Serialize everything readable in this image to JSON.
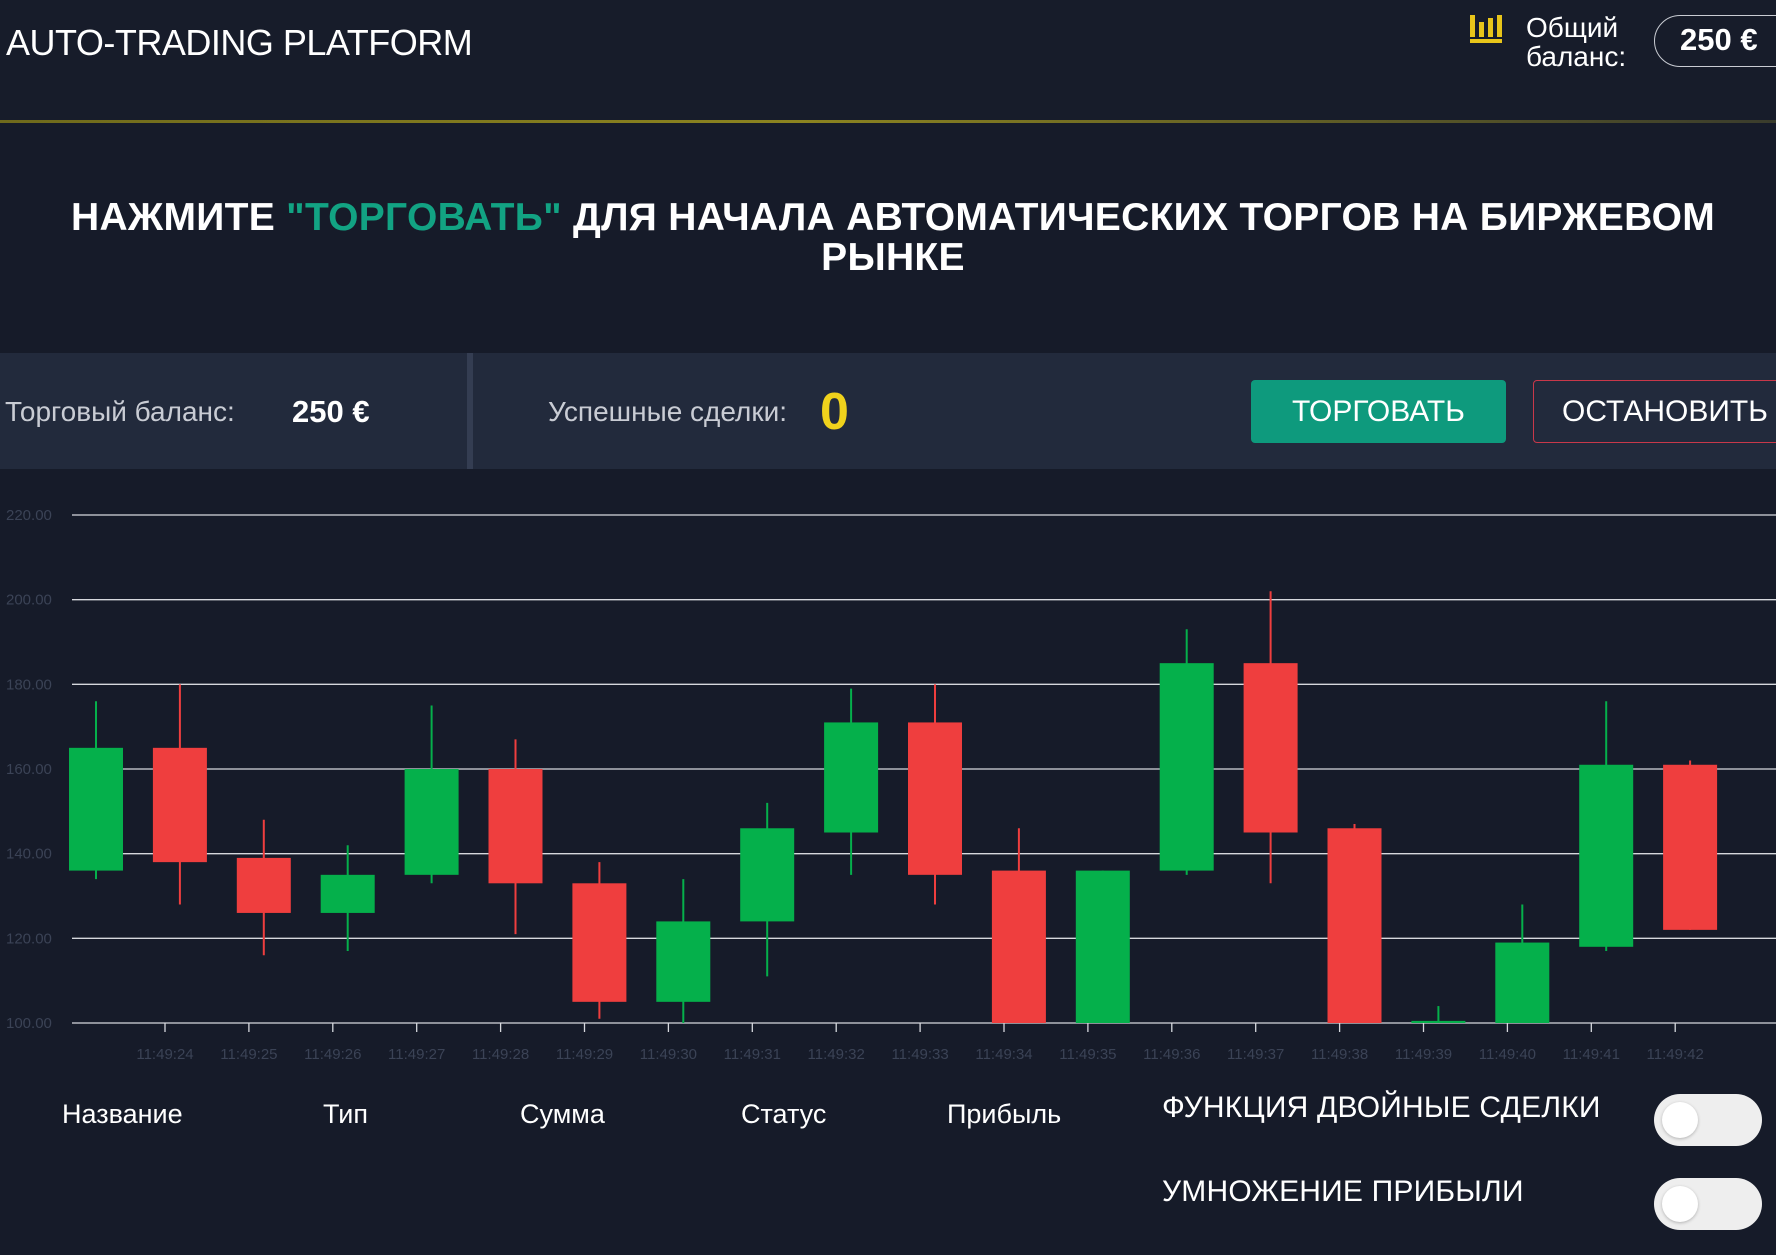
{
  "header": {
    "title": "AUTO-TRADING PLATFORM",
    "balance_label_line1": "Общий",
    "balance_label_line2": "баланс:",
    "balance_value": "250 €",
    "balance_icon": "bar-chart-icon",
    "accent_color": "#e8c51a"
  },
  "headline": {
    "part1": "НАЖМИТЕ ",
    "accent": "\"ТОРГОВАТЬ\"",
    "part2": " ДЛЯ НАЧАЛА АВТОМАТИЧЕСКИХ ТОРГОВ НА БИРЖЕВОМ РЫНКЕ",
    "accent_color": "#12a383"
  },
  "stats": {
    "trade_balance_label": "Торговый баланс:",
    "trade_balance_value": "250 €",
    "success_trades_label": "Успешные сделки:",
    "success_trades_value": "0",
    "trade_button": "ТОРГОВАТЬ",
    "stop_button": "ОСТАНОВИТЬ"
  },
  "chart_data": {
    "type": "candlestick",
    "ylim": [
      100,
      220
    ],
    "yticks": [
      "220.00",
      "200.00",
      "180.00",
      "160.00",
      "140.00",
      "120.00",
      "100.00"
    ],
    "xticks": [
      "11:49:24",
      "11:49:25",
      "11:49:26",
      "11:49:27",
      "11:49:28",
      "11:49:29",
      "11:49:30",
      "11:49:31",
      "11:49:32",
      "11:49:33",
      "11:49:34",
      "11:49:35",
      "11:49:36",
      "11:49:37",
      "11:49:38",
      "11:49:39",
      "11:49:40",
      "11:49:41",
      "11:49:42"
    ],
    "up_color": "#05b04b",
    "down_color": "#ef3e3e",
    "candles": [
      {
        "open": 136,
        "close": 165,
        "high": 176,
        "low": 134
      },
      {
        "open": 165,
        "close": 138,
        "high": 180,
        "low": 128
      },
      {
        "open": 139,
        "close": 126,
        "high": 148,
        "low": 116
      },
      {
        "open": 126,
        "close": 135,
        "high": 142,
        "low": 117
      },
      {
        "open": 135,
        "close": 160,
        "high": 175,
        "low": 133
      },
      {
        "open": 160,
        "close": 133,
        "high": 167,
        "low": 121
      },
      {
        "open": 133,
        "close": 105,
        "high": 138,
        "low": 101
      },
      {
        "open": 105,
        "close": 124,
        "high": 134,
        "low": 100
      },
      {
        "open": 124,
        "close": 146,
        "high": 152,
        "low": 111
      },
      {
        "open": 145,
        "close": 171,
        "high": 179,
        "low": 135
      },
      {
        "open": 171,
        "close": 135,
        "high": 180,
        "low": 128
      },
      {
        "open": 136,
        "close": 100,
        "high": 146,
        "low": 100
      },
      {
        "open": 100,
        "close": 136,
        "high": 136,
        "low": 100
      },
      {
        "open": 136,
        "close": 185,
        "high": 193,
        "low": 135
      },
      {
        "open": 185,
        "close": 145,
        "high": 202,
        "low": 133
      },
      {
        "open": 146,
        "close": 100,
        "high": 147,
        "low": 100
      },
      {
        "open": 100,
        "close": 100.5,
        "high": 104,
        "low": 100
      },
      {
        "open": 100,
        "close": 119,
        "high": 128,
        "low": 100
      },
      {
        "open": 118,
        "close": 161,
        "high": 176,
        "low": 117
      },
      {
        "open": 161,
        "close": 122,
        "high": 162,
        "low": 122
      }
    ]
  },
  "table": {
    "columns": [
      "Название",
      "Тип",
      "Сумма",
      "Статус",
      "Прибыль"
    ]
  },
  "options": {
    "double_trades_label": "ФУНКЦИЯ ДВОЙНЫЕ СДЕЛКИ",
    "profit_multiply_label": "УМНОЖЕНИЕ ПРИБЫЛИ",
    "double_trades_on": false,
    "profit_multiply_on": false
  }
}
